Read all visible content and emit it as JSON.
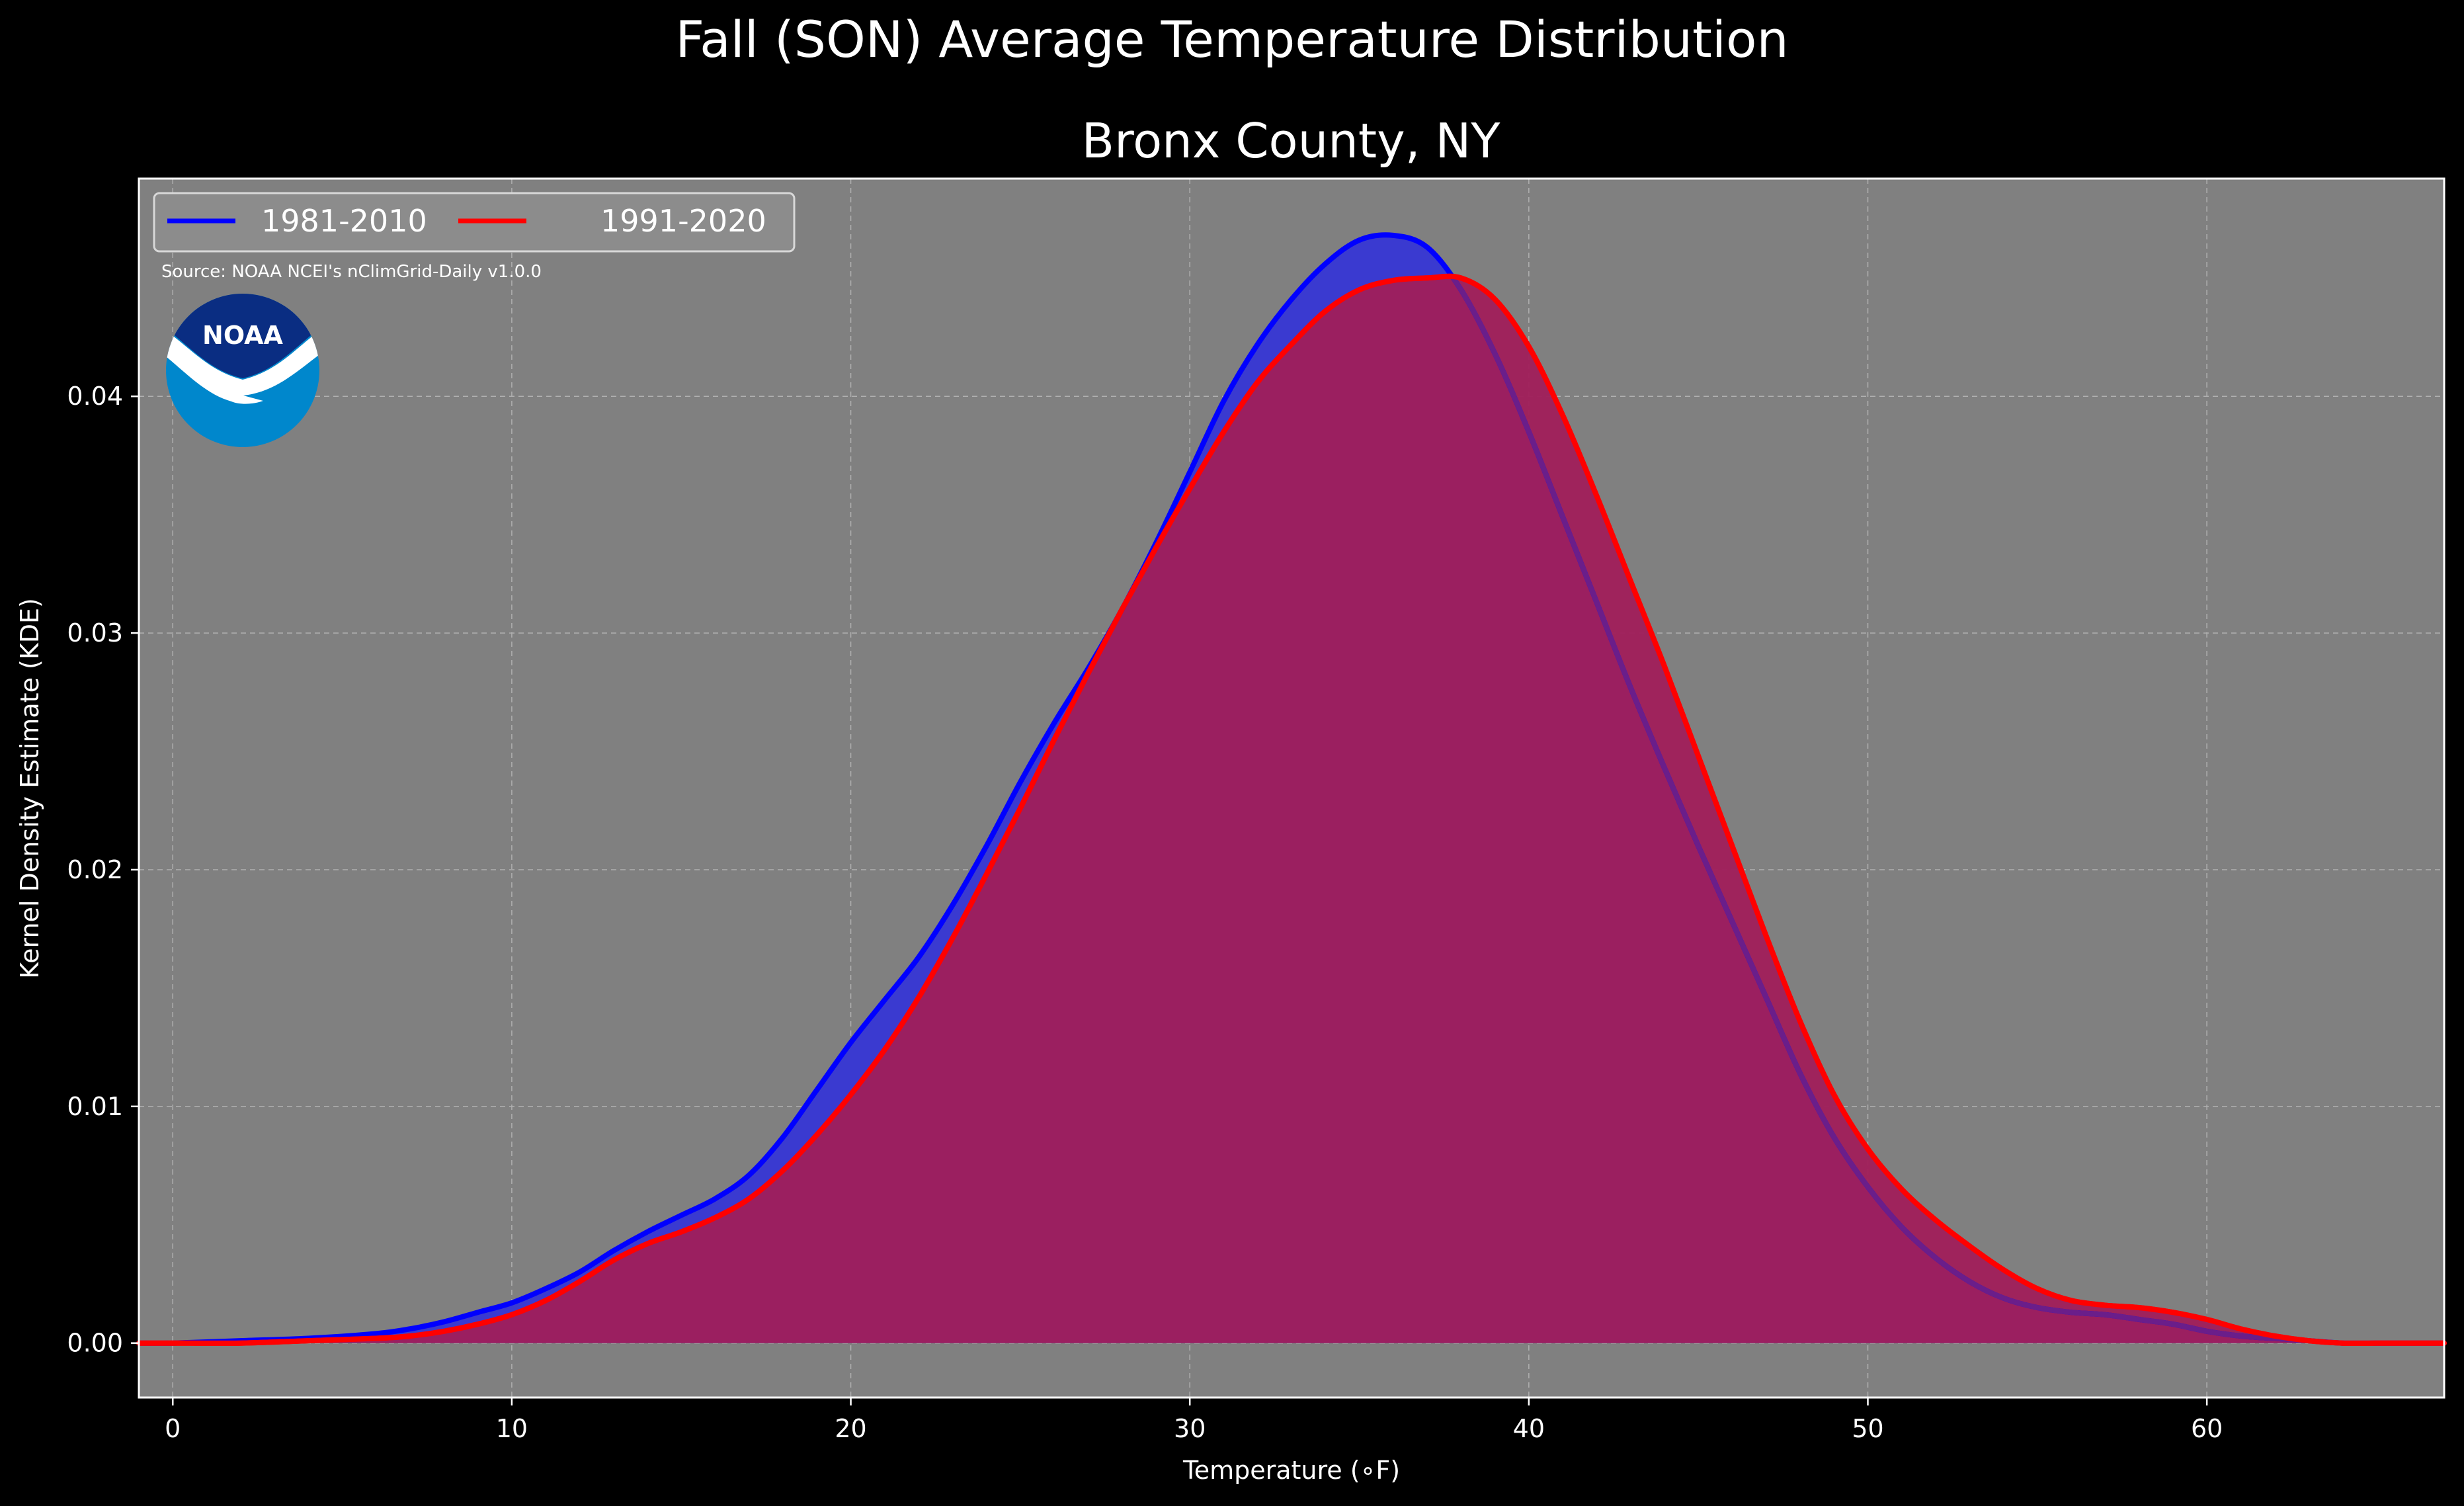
{
  "chart_data": {
    "type": "area",
    "title": "Fall (SON) Average Temperature Distribution",
    "subtitle": "Bronx County, NY",
    "xlabel": "Temperature (∘F)",
    "ylabel": "Kernel Density Estimate (KDE)",
    "xlim": [
      -1,
      67
    ],
    "ylim": [
      -0.0023,
      0.0492
    ],
    "xticks": [
      0,
      10,
      20,
      30,
      40,
      50,
      60
    ],
    "xtick_labels": [
      "0",
      "10",
      "20",
      "30",
      "40",
      "50",
      "60"
    ],
    "yticks": [
      0.0,
      0.01,
      0.02,
      0.03,
      0.04
    ],
    "ytick_labels": [
      "0.00",
      "0.01",
      "0.02",
      "0.03",
      "0.04"
    ],
    "grid": true,
    "legend_position": "top-left",
    "source_note": "Source: NOAA NCEI's nClimGrid-Daily v1.0.0",
    "logo_text": "NOAA",
    "colors": {
      "figure_background": "#000000",
      "plot_background": "#808080",
      "fill_1981": "#3a3ad0",
      "fill_1991": "#a01e5a",
      "line_1981": "#0000ff",
      "line_1991": "#ff0000",
      "noaa_dark": "#0a2d82",
      "noaa_light": "#0087cc"
    },
    "series": [
      {
        "name": "1981-2010",
        "color": "#0000ff",
        "x": [
          -1,
          0,
          2,
          4,
          6,
          7,
          8,
          9,
          10,
          11,
          12,
          13,
          14,
          15,
          16,
          17,
          18,
          19,
          20,
          21,
          22,
          23,
          24,
          25,
          26,
          27,
          28,
          29,
          30,
          31,
          32,
          33,
          34,
          35,
          36,
          37,
          38,
          39,
          40,
          41,
          42,
          43,
          44,
          45,
          46,
          47,
          48,
          49,
          50,
          51,
          52,
          53,
          54,
          55,
          56,
          57,
          58,
          59,
          60,
          61,
          62,
          63,
          64,
          65,
          66,
          67
        ],
        "y": [
          0.0,
          0.0,
          0.0001,
          0.0002,
          0.0004,
          0.0006,
          0.0009,
          0.0013,
          0.0017,
          0.0023,
          0.003,
          0.0039,
          0.0047,
          0.0054,
          0.0061,
          0.0071,
          0.0087,
          0.0107,
          0.0127,
          0.0145,
          0.0163,
          0.0185,
          0.021,
          0.0237,
          0.0262,
          0.0285,
          0.031,
          0.0338,
          0.0368,
          0.0398,
          0.0422,
          0.0441,
          0.0456,
          0.0466,
          0.0468,
          0.0463,
          0.0445,
          0.0418,
          0.0385,
          0.0349,
          0.0313,
          0.0277,
          0.0243,
          0.021,
          0.0178,
          0.0146,
          0.0114,
          0.0087,
          0.0066,
          0.0049,
          0.0036,
          0.0026,
          0.0019,
          0.0015,
          0.0013,
          0.0012,
          0.001,
          0.0008,
          0.0005,
          0.0003,
          0.0002,
          0.0001,
          0.0,
          0.0,
          0.0,
          0.0
        ]
      },
      {
        "name": "1991-2020",
        "color": "#ff0000",
        "x": [
          -1,
          0,
          2,
          4,
          6,
          7,
          8,
          9,
          10,
          11,
          12,
          13,
          14,
          15,
          16,
          17,
          18,
          19,
          20,
          21,
          22,
          23,
          24,
          25,
          26,
          27,
          28,
          29,
          30,
          31,
          32,
          33,
          34,
          35,
          36,
          37,
          38,
          39,
          40,
          41,
          42,
          43,
          44,
          45,
          46,
          47,
          48,
          49,
          50,
          51,
          52,
          53,
          54,
          55,
          56,
          57,
          58,
          59,
          60,
          61,
          62,
          63,
          64,
          65,
          66,
          67
        ],
        "y": [
          0.0,
          0.0,
          0.0,
          0.0001,
          0.0002,
          0.0003,
          0.0005,
          0.0008,
          0.0012,
          0.0018,
          0.0026,
          0.0035,
          0.0042,
          0.0047,
          0.0053,
          0.0061,
          0.0073,
          0.0088,
          0.0105,
          0.0124,
          0.0146,
          0.0171,
          0.0198,
          0.0226,
          0.0255,
          0.0283,
          0.031,
          0.0336,
          0.0361,
          0.0385,
          0.0406,
          0.0422,
          0.0436,
          0.0445,
          0.0449,
          0.045,
          0.045,
          0.0441,
          0.0421,
          0.0392,
          0.0358,
          0.0322,
          0.0286,
          0.0248,
          0.021,
          0.0172,
          0.0136,
          0.0105,
          0.0082,
          0.0065,
          0.0052,
          0.0041,
          0.0031,
          0.0023,
          0.0018,
          0.0016,
          0.0015,
          0.0013,
          0.001,
          0.0006,
          0.0003,
          0.0001,
          0.0,
          0.0,
          0.0,
          0.0
        ]
      }
    ]
  }
}
